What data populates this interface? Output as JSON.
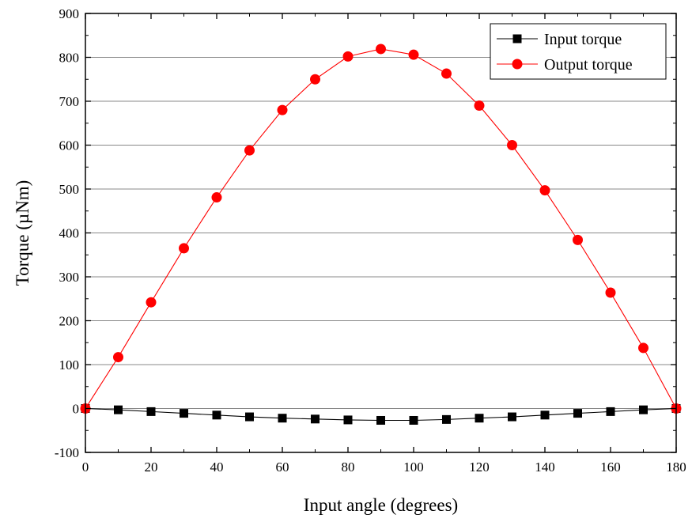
{
  "chart_data": {
    "type": "line",
    "title": "",
    "xlabel": "Input angle (degrees)",
    "ylabel": "Torque (µNm)",
    "xlim": [
      0,
      180
    ],
    "ylim": [
      -100,
      900
    ],
    "xticks": [
      0,
      20,
      40,
      60,
      80,
      100,
      120,
      140,
      160,
      180
    ],
    "yticks": [
      -100,
      0,
      100,
      200,
      300,
      400,
      500,
      600,
      700,
      800,
      900
    ],
    "grid": "horizontal",
    "legend": "top-right",
    "x": [
      0,
      10,
      20,
      30,
      40,
      50,
      60,
      70,
      80,
      90,
      100,
      110,
      120,
      130,
      140,
      150,
      160,
      170,
      180
    ],
    "series": [
      {
        "name": "Input torque",
        "marker": "square",
        "color": "#000000",
        "values": [
          0,
          -3,
          -7,
          -11,
          -15,
          -19,
          -22,
          -24,
          -26,
          -27,
          -27,
          -25,
          -22,
          -19,
          -15,
          -11,
          -7,
          -3,
          0
        ]
      },
      {
        "name": "Output torque",
        "marker": "circle",
        "color": "#ff0000",
        "values": [
          0,
          117,
          242,
          365,
          481,
          588,
          680,
          750,
          802,
          819,
          806,
          763,
          690,
          600,
          497,
          384,
          264,
          138,
          0
        ]
      }
    ]
  }
}
